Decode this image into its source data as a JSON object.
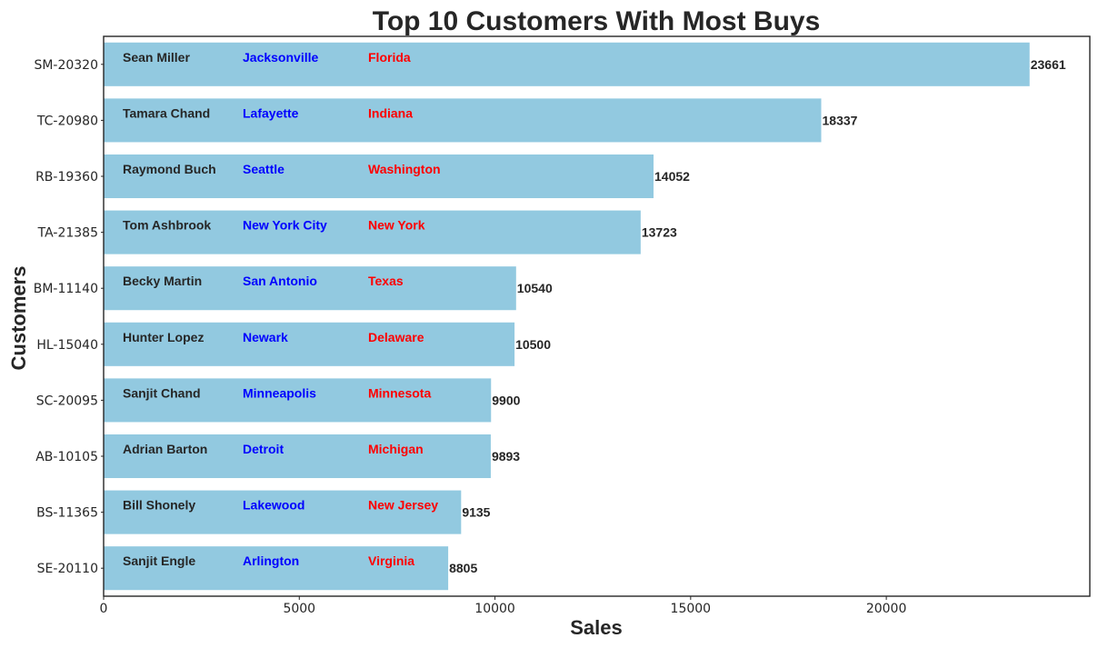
{
  "chart_data": {
    "type": "bar",
    "orientation": "horizontal",
    "title": "Top 10 Customers With Most Buys",
    "xlabel": "Sales",
    "ylabel": "Customers",
    "xlim": [
      0,
      25200
    ],
    "xticks": [
      0,
      5000,
      10000,
      15000,
      20000
    ],
    "grid": false,
    "bar_color": "#92c9e0",
    "name_color": "#262626",
    "city_color": "#0000ff",
    "state_color": "#ff0000",
    "categories": [
      "SM-20320",
      "TC-20980",
      "RB-19360",
      "TA-21385",
      "BM-11140",
      "HL-15040",
      "SC-20095",
      "AB-10105",
      "BS-11365",
      "SE-20110"
    ],
    "values": [
      23661,
      18337,
      14052,
      13723,
      10540,
      10500,
      9900,
      9893,
      9135,
      8805
    ],
    "value_labels": [
      "23661",
      "18337",
      "14052",
      "13723",
      "10540",
      "10500",
      "9900",
      "9893",
      "9135",
      "8805"
    ],
    "customer_names": [
      "Sean Miller",
      "Tamara Chand",
      "Raymond Buch",
      "Tom Ashbrook",
      "Becky Martin",
      "Hunter Lopez",
      "Sanjit Chand",
      "Adrian Barton",
      "Bill Shonely",
      "Sanjit Engle"
    ],
    "cities": [
      "Jacksonville",
      "Lafayette",
      "Seattle",
      "New York City",
      "San Antonio",
      "Newark",
      "Minneapolis",
      "Detroit",
      "Lakewood",
      "Arlington"
    ],
    "states": [
      "Florida",
      "Indiana",
      "Washington",
      "New York",
      "Texas",
      "Delaware",
      "Minnesota",
      "Michigan",
      "New Jersey",
      "Virginia"
    ]
  }
}
